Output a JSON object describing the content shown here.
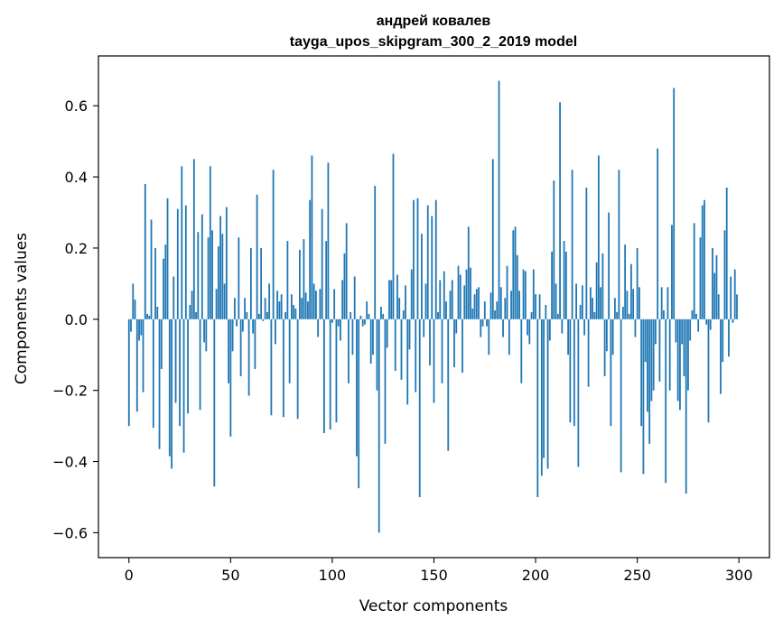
{
  "chart_data": {
    "type": "bar",
    "title": [
      "андрей ковалев",
      "tayga_upos_skipgram_300_2_2019 model"
    ],
    "xlabel": "Vector components",
    "ylabel": "Components values",
    "xlim": [
      -15,
      315
    ],
    "ylim": [
      -0.67,
      0.74
    ],
    "xticks": [
      0,
      50,
      100,
      150,
      200,
      250,
      300
    ],
    "xtick_labels": [
      "0",
      "50",
      "100",
      "150",
      "200",
      "250",
      "300"
    ],
    "yticks": [
      -0.6,
      -0.4,
      -0.2,
      0.0,
      0.2,
      0.4,
      0.6
    ],
    "ytick_labels": [
      "−0.6",
      "−0.4",
      "−0.2",
      "0.0",
      "0.2",
      "0.4",
      "0.6"
    ],
    "bar_color": "#1f77b4",
    "grid": false,
    "x": "0..299",
    "values": [
      -0.3,
      -0.035,
      0.1,
      0.055,
      -0.26,
      -0.06,
      -0.045,
      -0.205,
      0.38,
      0.015,
      0.01,
      0.28,
      -0.305,
      0.2,
      0.035,
      -0.365,
      -0.14,
      0.17,
      0.21,
      0.34,
      -0.385,
      -0.42,
      0.12,
      -0.235,
      0.31,
      -0.3,
      0.43,
      -0.375,
      0.32,
      -0.265,
      0.04,
      0.08,
      0.45,
      0.02,
      0.245,
      -0.255,
      0.295,
      -0.065,
      -0.09,
      0.23,
      0.43,
      0.25,
      -0.47,
      0.085,
      0.205,
      0.29,
      0.24,
      0.1,
      0.315,
      -0.18,
      -0.33,
      -0.09,
      0.06,
      -0.02,
      0.23,
      -0.16,
      -0.035,
      0.06,
      0.02,
      -0.215,
      0.2,
      -0.04,
      -0.14,
      0.35,
      0.015,
      0.2,
      -0.005,
      0.06,
      0.02,
      0.1,
      -0.27,
      0.42,
      -0.07,
      0.08,
      0.05,
      0.07,
      -0.275,
      0.02,
      0.22,
      -0.18,
      0.07,
      0.04,
      0.03,
      -0.28,
      0.195,
      0.06,
      0.225,
      0.075,
      0.05,
      0.335,
      0.46,
      0.1,
      0.08,
      -0.05,
      0.085,
      0.31,
      -0.32,
      0.22,
      0.44,
      -0.31,
      -0.01,
      0.085,
      -0.29,
      -0.02,
      -0.06,
      0.11,
      0.185,
      0.27,
      -0.18,
      0.02,
      -0.1,
      0.12,
      -0.385,
      -0.475,
      0.01,
      -0.02,
      -0.015,
      0.05,
      0.015,
      -0.125,
      -0.1,
      0.375,
      -0.2,
      -0.6,
      0.035,
      0.015,
      -0.35,
      -0.08,
      0.11,
      0.11,
      0.465,
      -0.145,
      0.125,
      0.06,
      -0.17,
      0.025,
      0.095,
      -0.24,
      -0.085,
      0.14,
      0.335,
      -0.205,
      0.34,
      -0.5,
      0.24,
      -0.05,
      0.1,
      0.32,
      -0.13,
      0.29,
      -0.235,
      0.335,
      0.02,
      0.11,
      -0.18,
      0.135,
      0.05,
      -0.37,
      0.08,
      0.11,
      -0.135,
      -0.04,
      0.15,
      0.125,
      -0.15,
      0.095,
      0.14,
      0.26,
      0.145,
      0.03,
      0.07,
      0.085,
      0.09,
      -0.05,
      -0.02,
      0.05,
      -0.02,
      -0.1,
      0.075,
      0.45,
      0.025,
      0.05,
      0.67,
      0.09,
      -0.05,
      0.06,
      0.15,
      -0.1,
      0.08,
      0.25,
      0.26,
      0.18,
      0.08,
      -0.18,
      0.14,
      0.135,
      -0.045,
      -0.07,
      0.02,
      0.14,
      0.07,
      -0.5,
      0.07,
      -0.44,
      -0.39,
      0.04,
      -0.42,
      -0.06,
      0.19,
      0.39,
      0.1,
      0.015,
      0.61,
      -0.04,
      0.22,
      0.19,
      -0.1,
      -0.29,
      0.42,
      -0.3,
      0.1,
      -0.415,
      0.04,
      0.095,
      -0.045,
      0.37,
      -0.19,
      0.09,
      0.06,
      0.02,
      0.16,
      0.46,
      0.09,
      0.185,
      -0.16,
      -0.09,
      0.3,
      -0.3,
      -0.1,
      0.06,
      0.02,
      0.42,
      -0.43,
      0.035,
      0.21,
      0.08,
      0.015,
      0.155,
      0.085,
      -0.05,
      0.2,
      0.09,
      -0.3,
      -0.435,
      -0.12,
      -0.26,
      -0.35,
      -0.23,
      -0.2,
      -0.07,
      0.48,
      -0.175,
      0.09,
      0.025,
      -0.46,
      0.09,
      -0.2,
      0.265,
      0.65,
      -0.065,
      -0.23,
      -0.255,
      -0.07,
      -0.16,
      -0.49,
      -0.2,
      -0.06,
      0.025,
      0.27,
      0.015,
      -0.035,
      0.23,
      0.32,
      0.335,
      -0.015,
      -0.29,
      -0.03,
      0.2,
      0.13,
      0.18,
      0.07,
      -0.21,
      -0.12,
      0.25,
      0.37,
      -0.105,
      0.12,
      -0.01,
      0.14,
      0.07
    ]
  }
}
